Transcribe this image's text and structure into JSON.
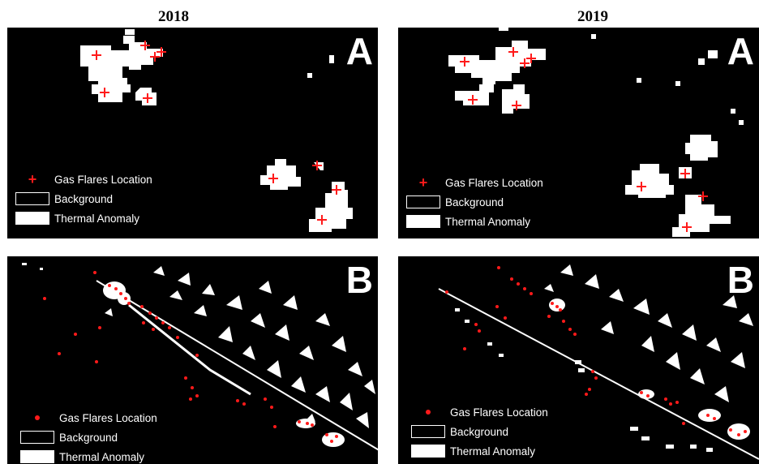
{
  "years": {
    "left": "2018",
    "right": "2019"
  },
  "panel_letters": {
    "top": "A",
    "bottom": "B"
  },
  "legend": {
    "flares": "Gas Flares Location",
    "background": "Background",
    "anomaly": "Thermal Anomaly"
  },
  "colors": {
    "flare": "#ff1a1a",
    "anomaly": "#ffffff",
    "background": "#000000"
  }
}
